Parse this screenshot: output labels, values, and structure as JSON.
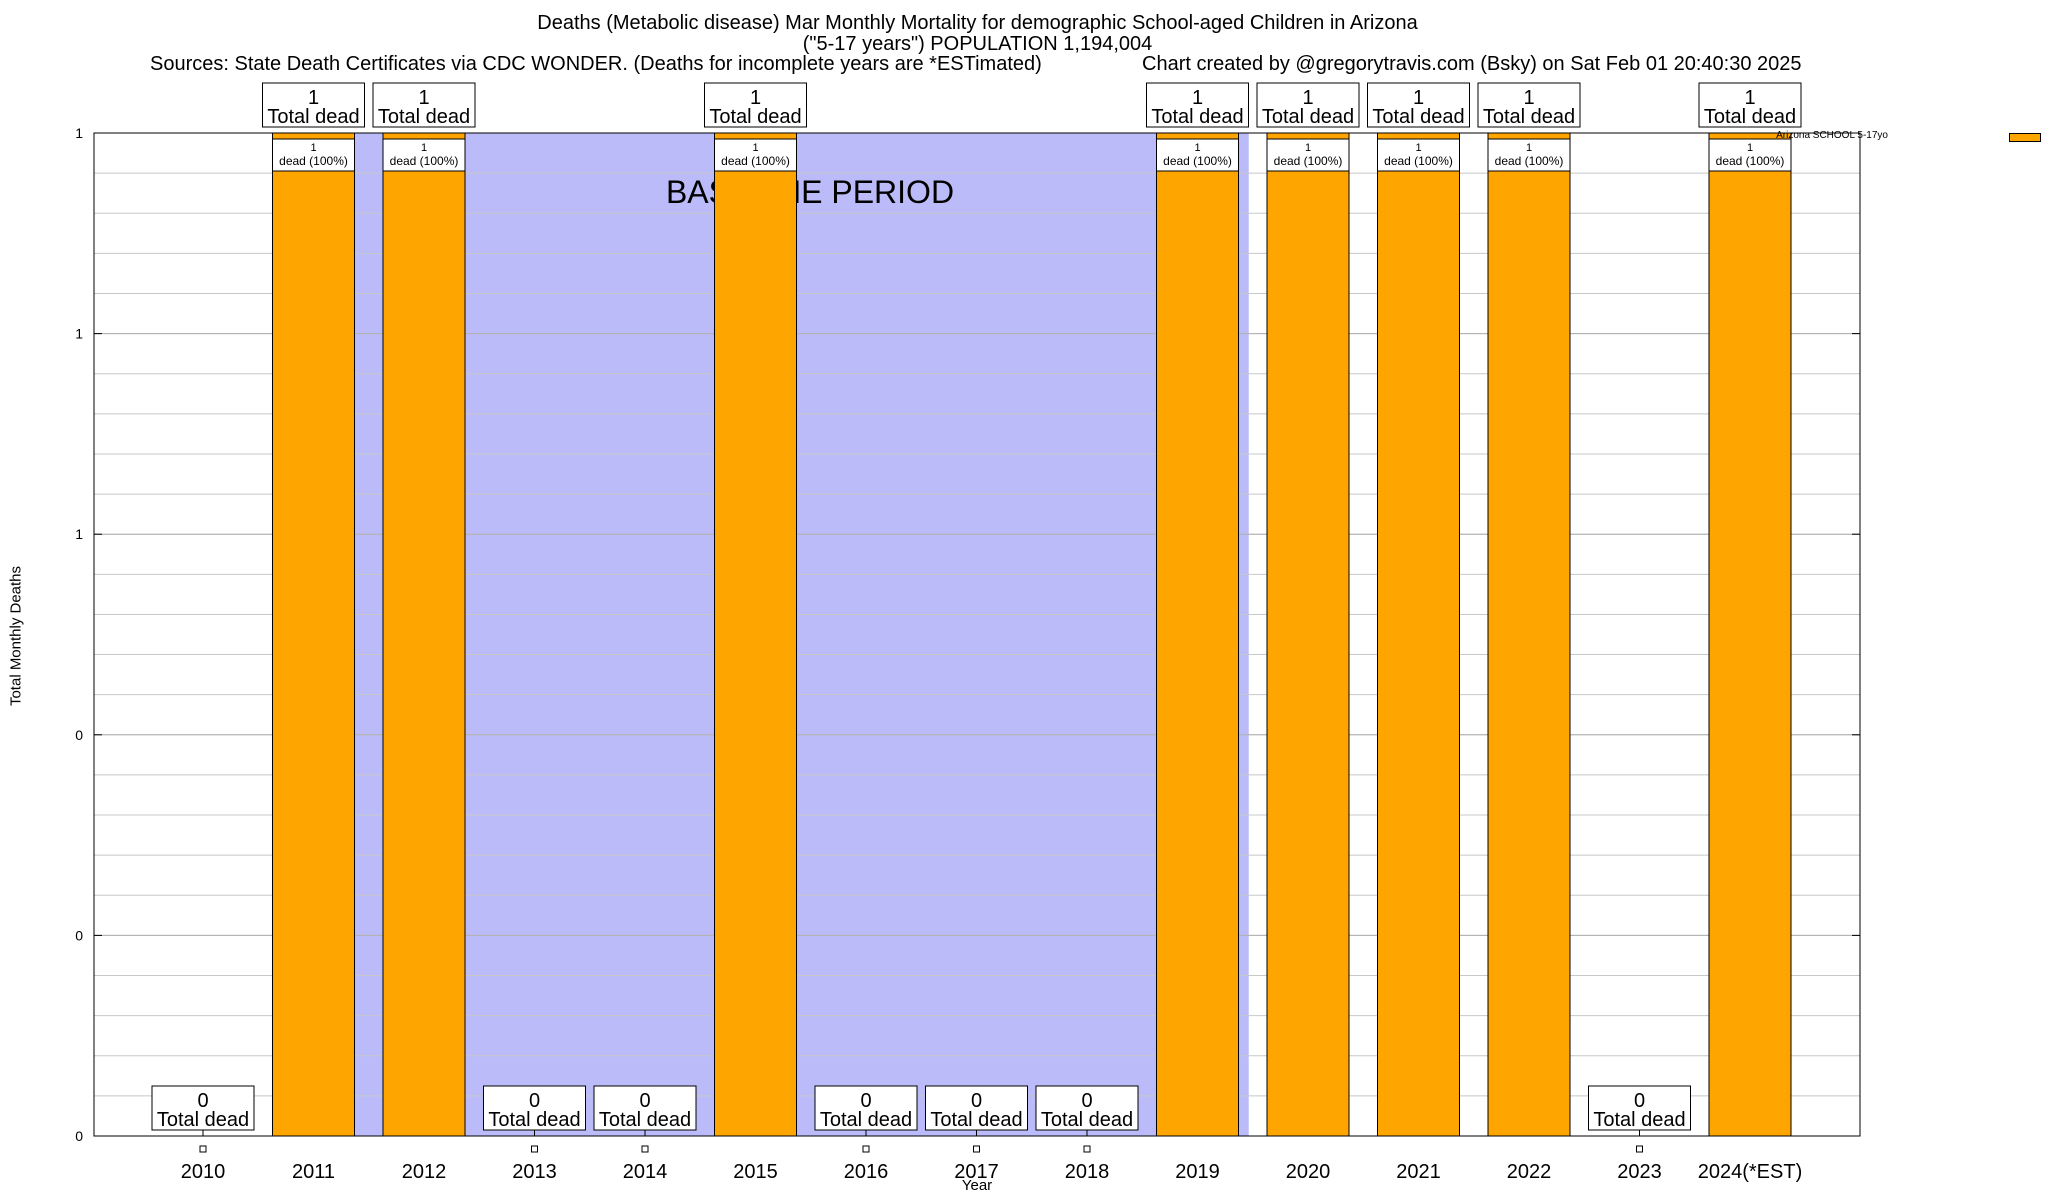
{
  "chart_data": {
    "type": "bar",
    "title": "Deaths (Metabolic disease) Mar Monthly Mortality for demographic School-aged Children in Arizona",
    "subtitle": "(\"5-17 years\") POPULATION 1,194,004",
    "sources": "Sources: State Death Certificates via CDC WONDER. (Deaths for incomplete years are *ESTimated)",
    "credit": "Chart created by @gregorytravis.com (Bsky) on Sat Feb 01 20:40:30 2025",
    "xlabel": "Year",
    "ylabel": "Total Monthly Deaths",
    "categories": [
      "2010",
      "2011",
      "2012",
      "2013",
      "2014",
      "2015",
      "2016",
      "2017",
      "2018",
      "2019",
      "2020",
      "2021",
      "2022",
      "2023",
      "2024(*EST)"
    ],
    "series": [
      {
        "name": "Arizona SCHOOL 5-17yo",
        "color": "#ffa500",
        "values": [
          0,
          1,
          1,
          0,
          0,
          1,
          0,
          0,
          0,
          1,
          1,
          1,
          1,
          0,
          1
        ]
      }
    ],
    "ylim": [
      0,
      1
    ],
    "ytick_values": [
      0,
      0.2,
      0.4,
      0.6,
      0.8,
      1.0
    ],
    "ytick_labels": [
      "0",
      "0",
      "0",
      "1",
      "1",
      "1"
    ],
    "minor_tick_step": 0.04,
    "top_label_suffix": "Total dead",
    "inner_label_text": "dead (100%)",
    "baseline_region": {
      "label": "BASELINE PERIOD",
      "start": "2012",
      "end": "2019",
      "color": "#bbbbfa"
    },
    "grid": true,
    "legend_position": "top-right"
  }
}
